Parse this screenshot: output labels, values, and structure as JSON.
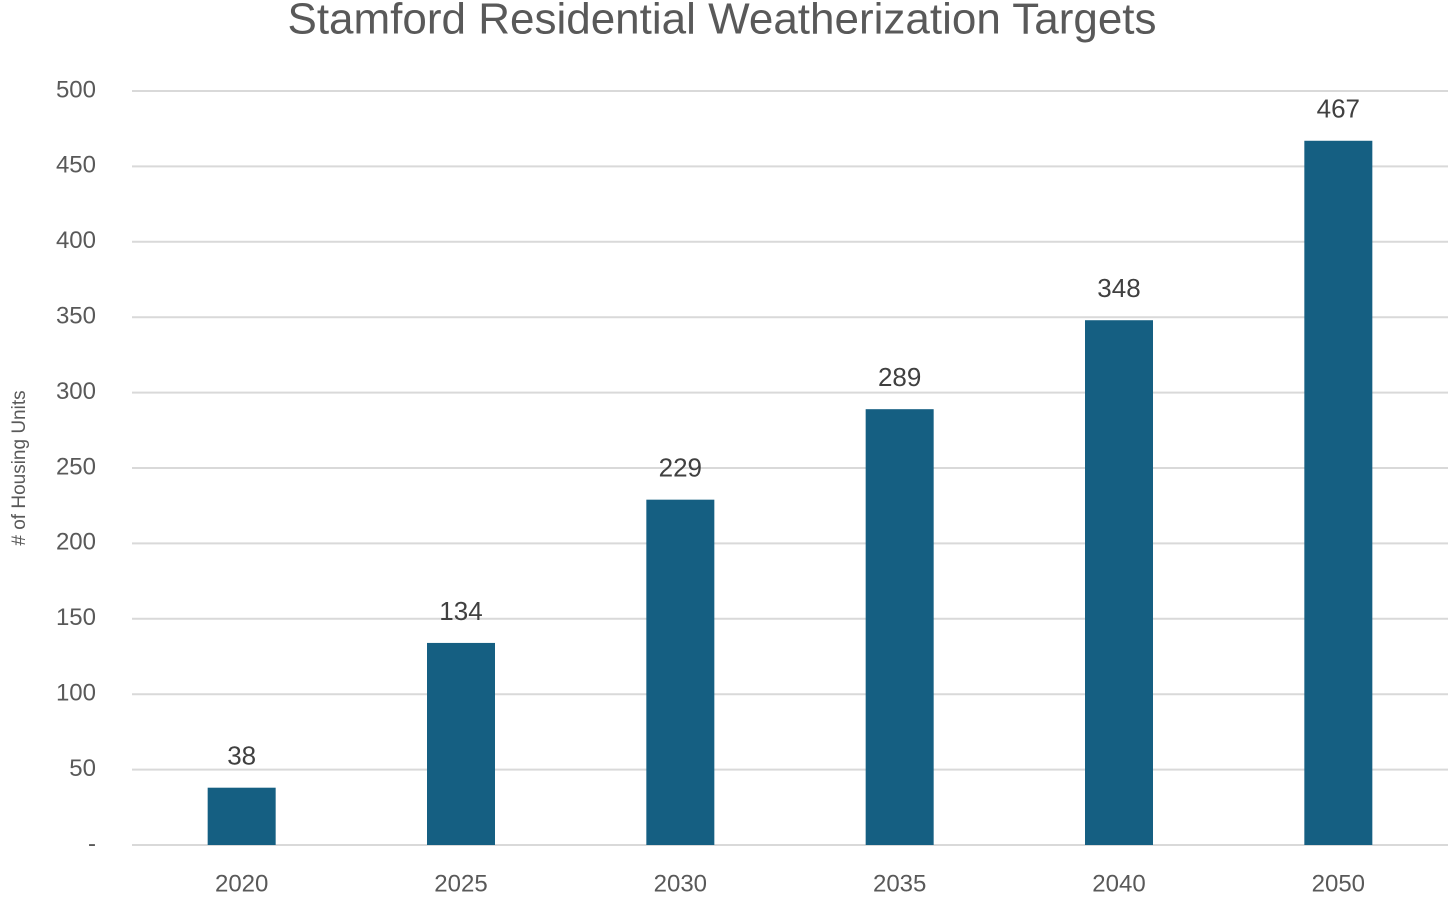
{
  "chart_data": {
    "type": "bar",
    "title": "Stamford Residential Weatherization Targets",
    "y_axis_label": "# of Housing Units",
    "categories": [
      "2020",
      "2025",
      "2030",
      "2035",
      "2040",
      "2050"
    ],
    "values": [
      38,
      134,
      229,
      289,
      348,
      467
    ],
    "color": "#155f82",
    "ylim": [
      0,
      500
    ],
    "yticks": [
      {
        "value": 0,
        "label": "-"
      },
      50,
      100,
      150,
      200,
      250,
      300,
      350,
      400,
      450,
      500
    ],
    "grid": true
  }
}
